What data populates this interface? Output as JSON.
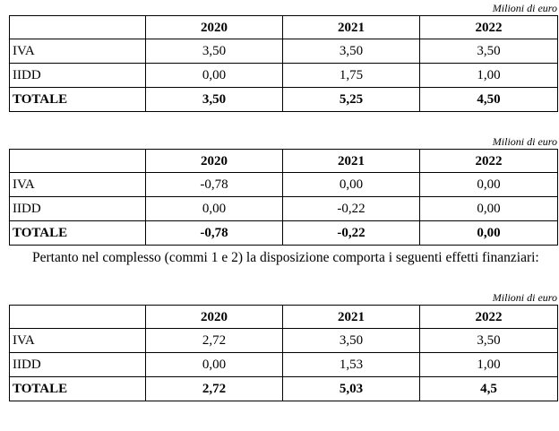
{
  "page": {
    "background": "#ffffff",
    "text_color": "#000000",
    "border_color": "#000000"
  },
  "tables": [
    {
      "unit_label": "Milioni di euro",
      "columns": [
        "",
        "2020",
        "2021",
        "2022"
      ],
      "rows": [
        {
          "label": "IVA",
          "values": [
            "3,50",
            "3,50",
            "3,50"
          ]
        },
        {
          "label": "IIDD",
          "values": [
            "0,00",
            "1,75",
            "1,00"
          ]
        },
        {
          "label": "TOTALE",
          "values": [
            "3,50",
            "5,25",
            "4,50"
          ]
        }
      ]
    },
    {
      "unit_label": "Milioni di euro",
      "columns": [
        "",
        "2020",
        "2021",
        "2022"
      ],
      "rows": [
        {
          "label": "IVA",
          "values": [
            "-0,78",
            "0,00",
            "0,00"
          ]
        },
        {
          "label": "IIDD",
          "values": [
            "0,00",
            "-0,22",
            "0,00"
          ]
        },
        {
          "label": "TOTALE",
          "values": [
            "-0,78",
            "-0,22",
            "0,00"
          ]
        }
      ]
    },
    {
      "unit_label": "Milioni di euro",
      "columns": [
        "",
        "2020",
        "2021",
        "2022"
      ],
      "rows": [
        {
          "label": "IVA",
          "values": [
            "2,72",
            "3,50",
            "3,50"
          ]
        },
        {
          "label": "IIDD",
          "values": [
            "0,00",
            "1,53",
            "1,00"
          ]
        },
        {
          "label": "TOTALE",
          "values": [
            "2,72",
            "5,03",
            "4,5"
          ]
        }
      ]
    }
  ],
  "paragraph": {
    "text": "Pertanto nel complesso (commi 1 e 2) la disposizione comporta i seguenti effetti finanziari:"
  }
}
